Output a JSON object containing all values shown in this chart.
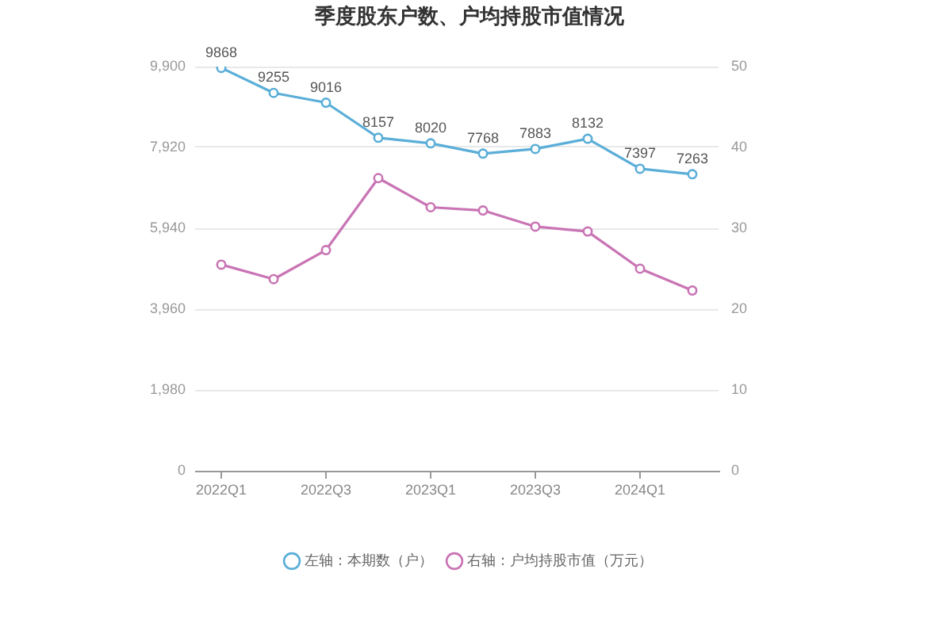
{
  "chart_data": {
    "type": "line",
    "title": "季度股东户数、户均持股市值情况",
    "categories": [
      "2022Q1",
      null,
      "2022Q3",
      null,
      "2023Q1",
      null,
      "2023Q3",
      null,
      "2024Q1",
      null
    ],
    "series": [
      {
        "name": "左轴：本期数（户）",
        "color": "#5aaed8",
        "values": [
          9868,
          9255,
          9016,
          8157,
          8020,
          7768,
          7883,
          8132,
          7397,
          7263
        ],
        "value_labels": [
          "9868",
          "9255",
          "9016",
          "8157",
          "8020",
          "7768",
          "7883",
          "8132",
          "7397",
          "7263"
        ]
      },
      {
        "name": "右轴：户均持股市值（万元）",
        "color": "#c974b4",
        "axis": "y2",
        "values": [
          25.5,
          23.7,
          27.3,
          36.2,
          32.6,
          32.2,
          30.2,
          29.6,
          25.0,
          22.3
        ]
      }
    ],
    "ylim": [
      0,
      9900
    ],
    "yticks": [
      0,
      {
        "value": 1980,
        "label": "1,980"
      },
      {
        "value": 3960,
        "label": "3,960"
      },
      {
        "value": 5940,
        "label": "5,940"
      },
      {
        "value": 7920,
        "label": "7,920"
      },
      {
        "value": 9900,
        "label": "9,900"
      }
    ],
    "y2lim": [
      0,
      50
    ],
    "y2ticks": [
      0,
      10,
      20,
      30,
      40,
      50
    ],
    "grid": "y",
    "legend": "bottom",
    "marker": "circle"
  }
}
